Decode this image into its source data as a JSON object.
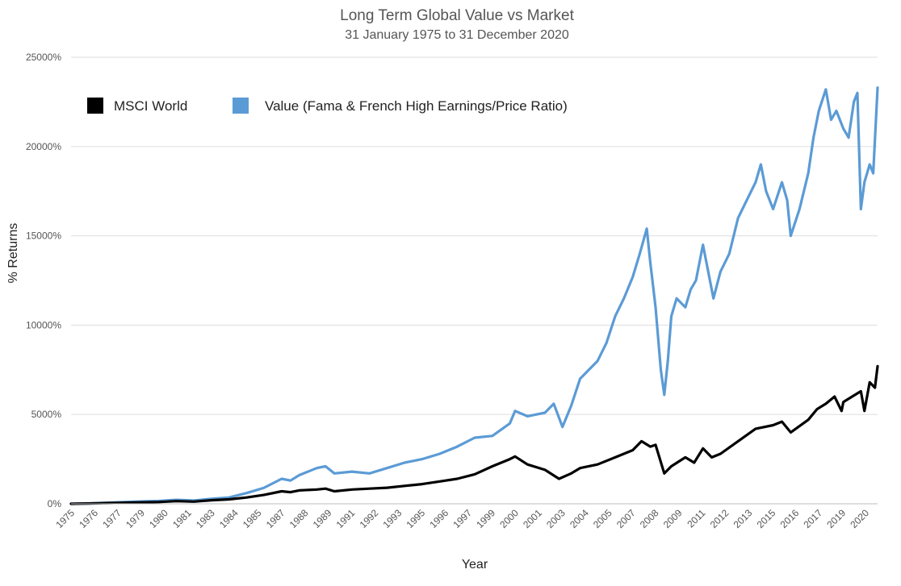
{
  "chart_data": {
    "type": "line",
    "title": "Long Term Global Value vs Market",
    "subtitle": "31 January 1975 to 31 December 2020",
    "xlabel": "Year",
    "ylabel": "% Returns",
    "ylim": [
      0,
      25000
    ],
    "y_ticks": [
      0,
      5000,
      10000,
      15000,
      20000,
      25000
    ],
    "y_tick_labels": [
      "0%",
      "5000%",
      "10000%",
      "15000%",
      "20000%",
      "25000%"
    ],
    "x_tick_labels": [
      "1975",
      "1976",
      "1977",
      "1979",
      "1980",
      "1981",
      "1983",
      "1984",
      "1985",
      "1987",
      "1988",
      "1989",
      "1991",
      "1992",
      "1993",
      "1995",
      "1996",
      "1997",
      "1999",
      "2000",
      "2001",
      "2003",
      "2004",
      "2005",
      "2007",
      "2008",
      "2009",
      "2011",
      "2012",
      "2013",
      "2015",
      "2016",
      "2017",
      "2019",
      "2020"
    ],
    "xlim": [
      1975.0,
      2020.95
    ],
    "grid": true,
    "legend_position": "top-left",
    "series": [
      {
        "name": "MSCI World",
        "color": "#000000",
        "x": [
          1975.0,
          1976.0,
          1977.0,
          1978.0,
          1979.0,
          1980.0,
          1981.0,
          1982.0,
          1983.0,
          1984.0,
          1985.0,
          1986.0,
          1987.0,
          1987.5,
          1988.0,
          1989.0,
          1989.5,
          1990.0,
          1991.0,
          1992.0,
          1993.0,
          1994.0,
          1995.0,
          1996.0,
          1997.0,
          1998.0,
          1999.0,
          2000.0,
          2000.3,
          2001.0,
          2002.0,
          2002.8,
          2003.5,
          2004.0,
          2005.0,
          2006.0,
          2007.0,
          2007.5,
          2008.0,
          2008.3,
          2008.8,
          2009.2,
          2010.0,
          2010.5,
          2011.0,
          2011.5,
          2012.0,
          2013.0,
          2014.0,
          2015.0,
          2015.5,
          2016.0,
          2017.0,
          2017.5,
          2018.0,
          2018.5,
          2018.9,
          2019.0,
          2019.5,
          2020.0,
          2020.2,
          2020.5,
          2020.8,
          2020.95
        ],
        "values": [
          0,
          20,
          40,
          60,
          80,
          100,
          150,
          120,
          200,
          250,
          350,
          500,
          700,
          650,
          750,
          800,
          850,
          700,
          800,
          850,
          900,
          1000,
          1100,
          1250,
          1400,
          1650,
          2100,
          2500,
          2650,
          2200,
          1900,
          1400,
          1700,
          2000,
          2200,
          2600,
          3000,
          3500,
          3200,
          3300,
          1700,
          2100,
          2600,
          2300,
          3100,
          2600,
          2800,
          3500,
          4200,
          4400,
          4600,
          4000,
          4700,
          5300,
          5600,
          6000,
          5200,
          5700,
          6000,
          6300,
          5200,
          6800,
          6500,
          7700
        ]
      },
      {
        "name": "Value (Fama & French High Earnings/Price Ratio)",
        "color": "#5b9bd5",
        "x": [
          1975.0,
          1976.0,
          1977.0,
          1978.0,
          1979.0,
          1980.0,
          1981.0,
          1982.0,
          1983.0,
          1984.0,
          1985.0,
          1986.0,
          1987.0,
          1987.5,
          1988.0,
          1989.0,
          1989.5,
          1990.0,
          1991.0,
          1992.0,
          1993.0,
          1994.0,
          1995.0,
          1996.0,
          1997.0,
          1998.0,
          1999.0,
          2000.0,
          2000.3,
          2001.0,
          2002.0,
          2002.5,
          2003.0,
          2003.5,
          2004.0,
          2005.0,
          2005.5,
          2006.0,
          2006.5,
          2007.0,
          2007.4,
          2007.8,
          2008.0,
          2008.3,
          2008.6,
          2008.8,
          2009.0,
          2009.2,
          2009.5,
          2010.0,
          2010.3,
          2010.6,
          2011.0,
          2011.3,
          2011.6,
          2012.0,
          2012.5,
          2013.0,
          2013.5,
          2014.0,
          2014.3,
          2014.6,
          2015.0,
          2015.5,
          2015.8,
          2016.0,
          2016.5,
          2017.0,
          2017.3,
          2017.6,
          2018.0,
          2018.3,
          2018.6,
          2019.0,
          2019.3,
          2019.6,
          2019.8,
          2020.0,
          2020.2,
          2020.5,
          2020.7,
          2020.95
        ],
        "values": [
          0,
          20,
          60,
          100,
          130,
          160,
          220,
          180,
          280,
          350,
          600,
          900,
          1400,
          1300,
          1600,
          2000,
          2100,
          1700,
          1800,
          1700,
          2000,
          2300,
          2500,
          2800,
          3200,
          3700,
          3800,
          4500,
          5200,
          4900,
          5100,
          5600,
          4300,
          5500,
          7000,
          8000,
          9000,
          10500,
          11500,
          12700,
          14000,
          15400,
          13500,
          11000,
          7500,
          6100,
          8000,
          10500,
          11500,
          11000,
          12000,
          12500,
          14500,
          13000,
          11500,
          13000,
          14000,
          16000,
          17000,
          18000,
          19000,
          17500,
          16500,
          18000,
          17000,
          15000,
          16500,
          18500,
          20500,
          22000,
          23200,
          21500,
          22000,
          21000,
          20500,
          22500,
          23000,
          16500,
          18000,
          19000,
          18500,
          23300
        ]
      }
    ]
  }
}
